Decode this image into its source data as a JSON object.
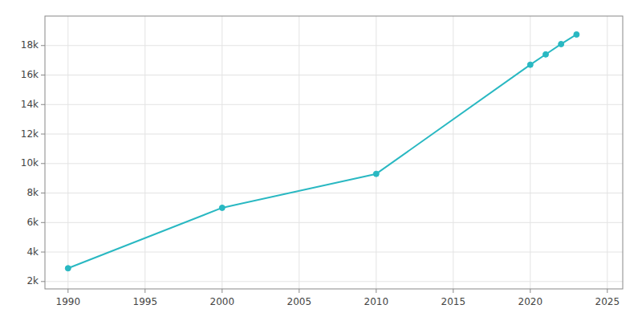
{
  "chart_data": {
    "type": "line",
    "x": [
      1990,
      2000,
      2010,
      2020,
      2021,
      2022,
      2023
    ],
    "values": [
      2900,
      7000,
      9300,
      16700,
      17400,
      18100,
      18750
    ],
    "color": "#29b8c2",
    "marker": "circle",
    "xlim": [
      1988.5,
      2026
    ],
    "ylim": [
      1500,
      20000
    ],
    "xticks": [
      1990,
      1995,
      2000,
      2005,
      2010,
      2015,
      2020,
      2025
    ],
    "yticks": [
      {
        "value": 2000,
        "label": "2k"
      },
      {
        "value": 4000,
        "label": "4k"
      },
      {
        "value": 6000,
        "label": "6k"
      },
      {
        "value": 8000,
        "label": "8k"
      },
      {
        "value": 10000,
        "label": "10k"
      },
      {
        "value": 12000,
        "label": "12k"
      },
      {
        "value": 14000,
        "label": "14k"
      },
      {
        "value": 16000,
        "label": "16k"
      },
      {
        "value": 18000,
        "label": "18k"
      }
    ],
    "grid": true
  }
}
